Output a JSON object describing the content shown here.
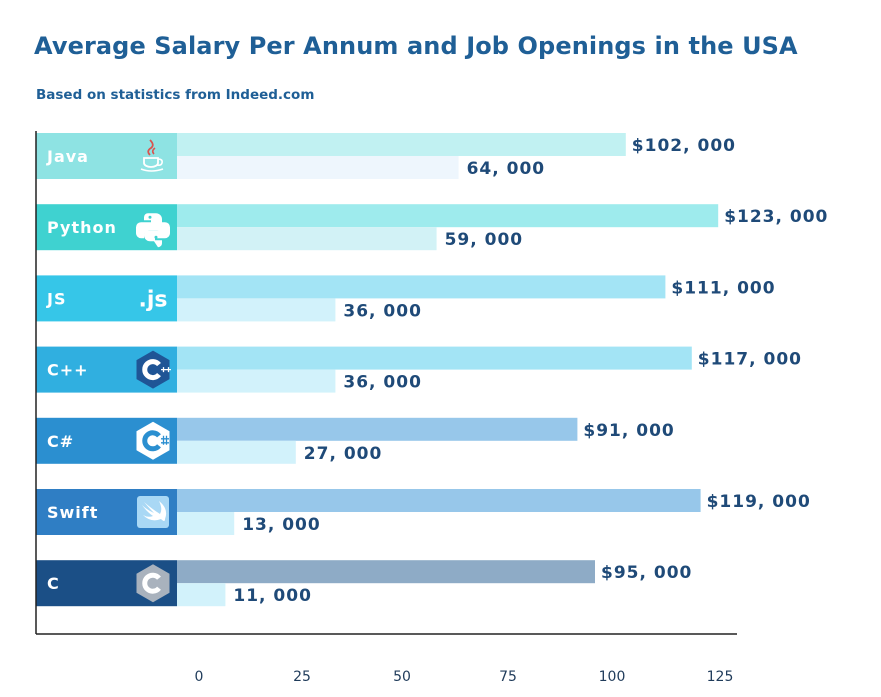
{
  "title": "Average Salary Per Annum and Job Openings in the USA",
  "subtitle": "Based on statistics from Indeed.com",
  "chart_data": {
    "type": "bar",
    "title": "Average Salary Per Annum and Job Openings in the USA",
    "subtitle": "Based on statistics from Indeed.com",
    "orientation": "horizontal",
    "categories": [
      "Java",
      "Python",
      "JS",
      "C++",
      "C#",
      "Swift",
      "C"
    ],
    "series": [
      {
        "values": [
          102000,
          123000,
          111000,
          117000,
          91000,
          119000,
          95000
        ],
        "labels": [
          "$102, 000",
          "$123, 000",
          "$111, 000",
          "$117, 000",
          "$91, 000",
          "$119, 000",
          "$95, 000"
        ]
      },
      {
        "values": [
          64000,
          59000,
          36000,
          36000,
          27000,
          13000,
          11000
        ],
        "labels": [
          "64, 000",
          "59, 000",
          "36, 000",
          "36, 000",
          "27, 000",
          "13, 000",
          "11, 000"
        ]
      }
    ],
    "xticks": [
      "0",
      "25",
      "50",
      "75",
      "100",
      "125"
    ],
    "xlim": [
      0,
      125
    ],
    "icons": [
      "java-icon",
      "python-icon",
      "js-icon",
      "cpp-icon",
      "csharp-icon",
      "swift-icon",
      "c-icon"
    ],
    "js_icon_text": ".js",
    "colors": {
      "label_bg": [
        "#8ee3e3",
        "#3fd2d0",
        "#36c6e8",
        "#30afe0",
        "#2b8fd0",
        "#2f7ec4",
        "#1b4f86"
      ],
      "salary_bar": [
        "#c1f1f2",
        "#9eebed",
        "#a3e4f5",
        "#a3e4f5",
        "#97c7ea",
        "#97c7ea",
        "#8eabc6"
      ],
      "openings_bar": [
        "#eef6fd",
        "#d2f2f6",
        "#d2f2fb",
        "#d2f2fb",
        "#d2f2fb",
        "#d2f2fb",
        "#d2f2fb"
      ],
      "text": "#1f4a78",
      "title": "#1f5f96"
    },
    "grid": false
  }
}
